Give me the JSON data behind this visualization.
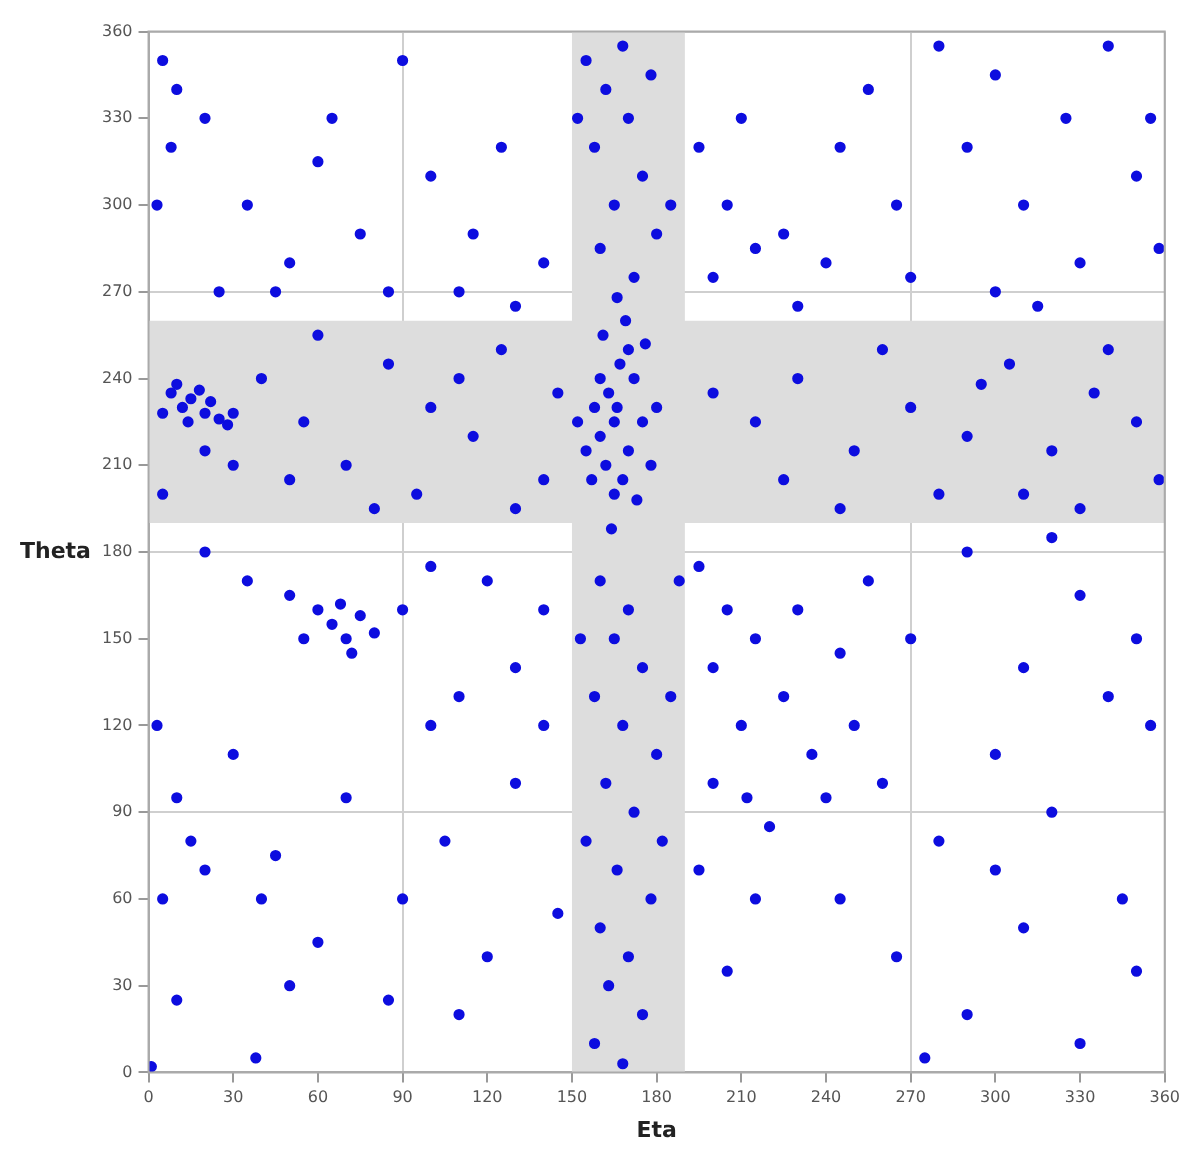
{
  "chart_data": {
    "type": "scatter",
    "xlabel": "Eta",
    "ylabel": "Theta",
    "xlim": [
      0,
      360
    ],
    "ylim": [
      0,
      360
    ],
    "xticks": [
      0,
      30,
      60,
      90,
      120,
      150,
      180,
      210,
      240,
      270,
      300,
      330,
      360
    ],
    "yticks": [
      0,
      30,
      60,
      90,
      120,
      150,
      180,
      210,
      240,
      270,
      300,
      330,
      360
    ],
    "grid": true,
    "marker": "circle",
    "bands": [
      {
        "axis": "x",
        "from": 150,
        "to": 190,
        "color": "#dddddd"
      },
      {
        "axis": "y",
        "from": 190,
        "to": 260,
        "color": "#dddddd"
      }
    ],
    "series": [
      {
        "color": "#0d0ddf",
        "x": [
          160,
          165,
          170,
          163,
          168,
          158,
          172,
          175,
          162,
          167,
          155,
          178,
          165,
          170,
          160,
          173,
          157,
          166,
          180,
          152,
          169,
          161,
          176,
          164,
          155,
          162,
          170,
          158,
          175,
          165,
          180,
          160,
          172,
          168,
          185,
          152,
          178,
          166,
          195,
          205,
          215,
          200,
          225,
          240,
          210,
          230,
          160,
          170,
          165,
          175,
          158,
          168,
          180,
          162,
          172,
          155,
          166,
          178,
          160,
          170,
          163,
          175,
          158,
          168,
          185,
          182,
          153,
          188,
          195,
          205,
          215,
          200,
          210,
          225,
          235,
          200,
          212,
          220,
          195,
          230,
          245,
          240,
          215,
          250,
          205,
          5,
          20,
          40,
          55,
          70,
          85,
          100,
          115,
          125,
          140,
          130,
          95,
          60,
          110,
          145,
          80,
          30,
          50,
          8,
          12,
          15,
          20,
          25,
          28,
          10,
          18,
          22,
          30,
          5,
          14,
          200,
          215,
          230,
          250,
          270,
          290,
          305,
          320,
          335,
          350,
          358,
          280,
          260,
          310,
          340,
          225,
          295,
          245,
          330,
          60,
          65,
          70,
          75,
          68,
          80,
          72,
          55,
          5,
          10,
          8,
          20,
          35,
          50,
          65,
          75,
          90,
          100,
          115,
          125,
          140,
          130,
          45,
          25,
          85,
          110,
          3,
          60,
          255,
          265,
          280,
          290,
          300,
          310,
          325,
          340,
          350,
          355,
          270,
          300,
          330,
          245,
          315,
          358,
          3,
          10,
          15,
          5,
          20,
          30,
          40,
          50,
          45,
          60,
          70,
          85,
          90,
          100,
          105,
          110,
          120,
          130,
          140,
          145,
          35,
          50,
          120,
          100,
          10,
          1,
          38,
          20,
          140,
          130,
          90,
          110,
          255,
          270,
          290,
          310,
          330,
          350,
          260,
          280,
          300,
          320,
          345,
          355,
          265,
          290,
          310,
          330,
          350,
          245,
          275,
          340,
          300,
          320
        ],
        "values": [
          220,
          225,
          215,
          235,
          205,
          230,
          240,
          225,
          210,
          245,
          215,
          210,
          200,
          250,
          240,
          198,
          205,
          230,
          230,
          225,
          260,
          255,
          252,
          188,
          350,
          340,
          330,
          320,
          310,
          300,
          290,
          285,
          275,
          355,
          300,
          330,
          345,
          268,
          320,
          300,
          285,
          275,
          290,
          280,
          330,
          265,
          170,
          160,
          150,
          140,
          130,
          120,
          110,
          100,
          90,
          80,
          70,
          60,
          50,
          40,
          30,
          20,
          10,
          3,
          130,
          80,
          150,
          170,
          175,
          160,
          150,
          140,
          120,
          130,
          110,
          100,
          95,
          85,
          70,
          160,
          145,
          95,
          60,
          120,
          35,
          200,
          215,
          240,
          225,
          210,
          245,
          230,
          220,
          250,
          205,
          195,
          200,
          255,
          240,
          235,
          195,
          210,
          205,
          235,
          230,
          233,
          228,
          226,
          224,
          238,
          236,
          232,
          228,
          228,
          225,
          235,
          225,
          240,
          215,
          230,
          220,
          245,
          215,
          235,
          225,
          205,
          200,
          250,
          200,
          250,
          205,
          238,
          195,
          195,
          160,
          155,
          150,
          158,
          162,
          152,
          145,
          150,
          350,
          340,
          320,
          330,
          300,
          280,
          330,
          290,
          350,
          310,
          290,
          320,
          280,
          265,
          270,
          270,
          270,
          270,
          300,
          315,
          340,
          300,
          355,
          320,
          345,
          300,
          330,
          355,
          310,
          330,
          275,
          270,
          280,
          320,
          265,
          285,
          120,
          95,
          80,
          60,
          70,
          110,
          60,
          30,
          75,
          45,
          95,
          25,
          60,
          120,
          80,
          20,
          40,
          100,
          120,
          55,
          170,
          165,
          170,
          175,
          25,
          2,
          5,
          180,
          160,
          140,
          160,
          130,
          170,
          150,
          180,
          140,
          165,
          150,
          100,
          80,
          110,
          90,
          60,
          120,
          40,
          20,
          50,
          10,
          35,
          60,
          5,
          130,
          70,
          185
        ]
      }
    ]
  }
}
